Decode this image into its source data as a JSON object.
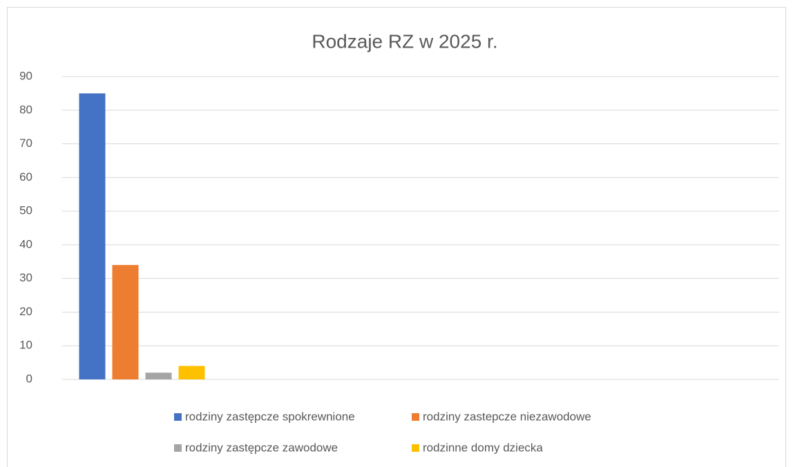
{
  "chart_data": {
    "type": "bar",
    "title": "Rodzaje RZ w 2025 r.",
    "categories": [
      null
    ],
    "series": [
      {
        "name": "rodziny zastępcze spokrewnione",
        "color": "#4472c4",
        "values": [
          85
        ]
      },
      {
        "name": "rodziny zastepcze niezawodowe",
        "color": "#ed7d31",
        "values": [
          34
        ]
      },
      {
        "name": "rodziny zastępcze zawodowe",
        "color": "#a5a5a5",
        "values": [
          2
        ]
      },
      {
        "name": "rodzinne domy dziecka",
        "color": "#ffc000",
        "values": [
          4
        ]
      }
    ],
    "ylim": [
      0,
      90
    ],
    "yticks": [
      0,
      10,
      20,
      30,
      40,
      50,
      60,
      70,
      80,
      90
    ],
    "grid": true,
    "legend": "bottom"
  }
}
